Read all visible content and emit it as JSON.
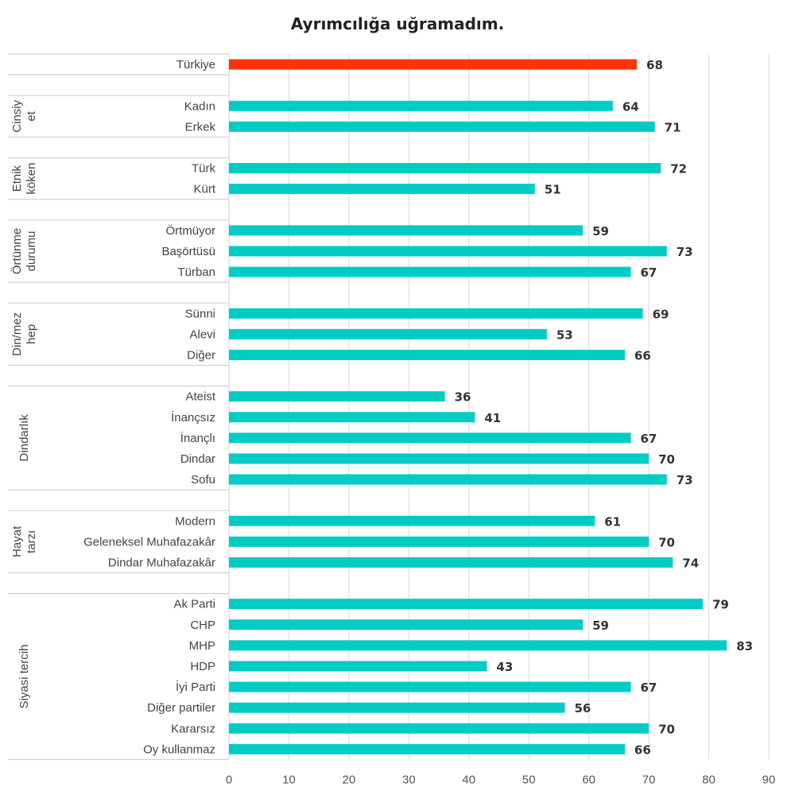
{
  "chart_data": {
    "type": "bar",
    "orientation": "horizontal",
    "title": "Ayrımcılığa uğramadım.",
    "xlim": [
      0,
      90
    ],
    "xticks": [
      0,
      10,
      20,
      30,
      40,
      50,
      60,
      70,
      80,
      90
    ],
    "grid": true,
    "colors": {
      "highlight": "#FF3300",
      "default": "#00CCC6"
    },
    "groups": [
      {
        "name": "",
        "items": [
          {
            "label": "Türkiye",
            "value": 68,
            "highlight": true
          }
        ]
      },
      {
        "name": "Cinsiy et",
        "lines": [
          "Cinsiy",
          "et"
        ],
        "items": [
          {
            "label": "Kadın",
            "value": 64
          },
          {
            "label": "Erkek",
            "value": 71
          }
        ]
      },
      {
        "name": "Etnik köken",
        "lines": [
          "Etnik",
          "köken"
        ],
        "items": [
          {
            "label": "Türk",
            "value": 72
          },
          {
            "label": "Kürt",
            "value": 51
          }
        ]
      },
      {
        "name": "Örtünme durumu",
        "lines": [
          "Örtünme",
          "durumu"
        ],
        "items": [
          {
            "label": "Örtmüyor",
            "value": 59
          },
          {
            "label": "Başörtüsü",
            "value": 73
          },
          {
            "label": "Türban",
            "value": 67
          }
        ]
      },
      {
        "name": "Din/mez hep",
        "lines": [
          "Din/mez",
          "hep"
        ],
        "items": [
          {
            "label": "Sünni",
            "value": 69
          },
          {
            "label": "Alevi",
            "value": 53
          },
          {
            "label": "Diğer",
            "value": 66
          }
        ]
      },
      {
        "name": "Dindarlık",
        "lines": [
          "Dindarlık"
        ],
        "items": [
          {
            "label": "Ateist",
            "value": 36
          },
          {
            "label": "İnançsız",
            "value": 41
          },
          {
            "label": "İnançlı",
            "value": 67
          },
          {
            "label": "Dindar",
            "value": 70
          },
          {
            "label": "Sofu",
            "value": 73
          }
        ]
      },
      {
        "name": "Hayat tarzı",
        "lines": [
          "Hayat",
          "tarzı"
        ],
        "items": [
          {
            "label": "Modern",
            "value": 61
          },
          {
            "label": "Geleneksel Muhafazakâr",
            "value": 70
          },
          {
            "label": "Dindar Muhafazakâr",
            "value": 74
          }
        ]
      },
      {
        "name": "Siyasi tercih",
        "lines": [
          "Siyasi tercih"
        ],
        "items": [
          {
            "label": "Ak Parti",
            "value": 79
          },
          {
            "label": "CHP",
            "value": 59
          },
          {
            "label": "MHP",
            "value": 83
          },
          {
            "label": "HDP",
            "value": 43
          },
          {
            "label": "İyi Parti",
            "value": 67
          },
          {
            "label": "Diğer partiler",
            "value": 56
          },
          {
            "label": "Kararsız",
            "value": 70
          },
          {
            "label": "Oy kullanmaz",
            "value": 66
          }
        ]
      }
    ]
  }
}
